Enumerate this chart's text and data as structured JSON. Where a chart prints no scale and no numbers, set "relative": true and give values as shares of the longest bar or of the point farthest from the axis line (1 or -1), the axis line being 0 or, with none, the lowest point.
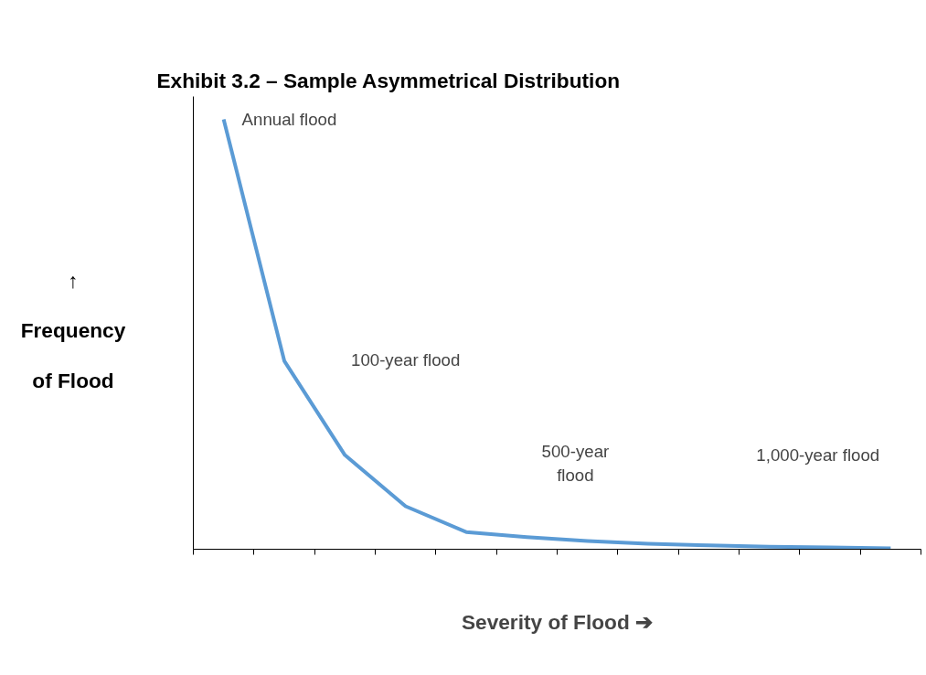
{
  "chart_data": {
    "type": "line",
    "title": "Exhibit 3.2 – Sample Asymmetrical Distribution",
    "xlabel": "Severity of Flood ➔",
    "ylabel": "↑\nFrequency\nof Flood",
    "relative": true,
    "categories": [
      null,
      null,
      null,
      null,
      null,
      null,
      null,
      null,
      null,
      null,
      null,
      null
    ],
    "series": [
      {
        "color": "#5b9bd5",
        "values": [
          1,
          0.438,
          0.219,
          0.1,
          0.04,
          0.028,
          0.019,
          0.013,
          0.009,
          0.006,
          0.004,
          0.002
        ]
      }
    ],
    "annotations": [
      "Annual flood",
      "100-year flood",
      "500-year\nflood",
      "1,000-year flood"
    ],
    "grid": false,
    "marker": "none",
    "line_style": "solid"
  }
}
